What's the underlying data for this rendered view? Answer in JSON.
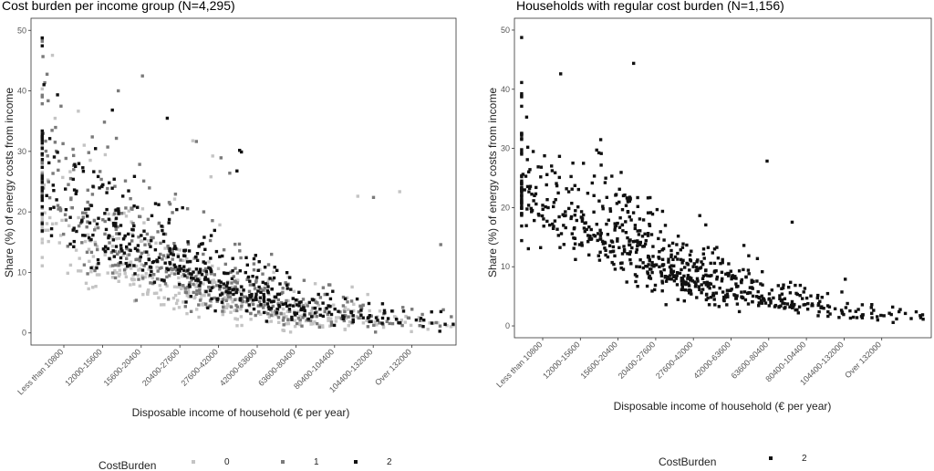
{
  "chart_data": [
    {
      "type": "scatter",
      "title": "Cost burden per income group (N=4,295)",
      "xlabel": "Disposable income of household (€ per year)",
      "ylabel": "Share (%) of energy costs from income",
      "x_categories": [
        "Less than 10800",
        "12000-15600",
        "15600-20400",
        "20400-27600",
        "27600-42000",
        "42000-63600",
        "63600-80400",
        "80400-104400",
        "104400-132000",
        "Over 132000"
      ],
      "y_ticks": [
        0,
        10,
        20,
        30,
        40,
        50
      ],
      "ylim": [
        -2,
        52
      ],
      "grid": false,
      "legend": {
        "title": "CostBurden",
        "position": "bottom",
        "entries": [
          "0",
          "1",
          "2"
        ]
      },
      "series": [
        {
          "name": "0",
          "color": "#c4c4c4",
          "count": 420,
          "profile": [
            [
              0,
              22,
              8
            ],
            [
              1.2,
              14,
              6
            ],
            [
              2.4,
              11,
              5
            ],
            [
              3.6,
              8,
              4
            ],
            [
              5,
              5,
              3
            ],
            [
              6.4,
              3.5,
              2.5
            ],
            [
              7.8,
              2.6,
              1.8
            ],
            [
              9.4,
              1.8,
              1.2
            ],
            [
              10.6,
              1.5,
              1
            ]
          ]
        },
        {
          "name": "1",
          "color": "#7a7a7a",
          "count": 440,
          "profile": [
            [
              0,
              27,
              9
            ],
            [
              1.2,
              18,
              7
            ],
            [
              2.4,
              14,
              6
            ],
            [
              3.6,
              11,
              5
            ],
            [
              5,
              7,
              4
            ],
            [
              6.4,
              4.5,
              3
            ],
            [
              7.8,
              3,
              2
            ],
            [
              9.4,
              2,
              1.4
            ],
            [
              10.6,
              1.6,
              1
            ]
          ]
        },
        {
          "name": "2",
          "color": "#111111",
          "count": 470,
          "profile": [
            [
              0,
              25,
              8
            ],
            [
              1.2,
              19,
              6
            ],
            [
              2.4,
              15,
              5
            ],
            [
              3.6,
              11,
              4
            ],
            [
              5,
              7.5,
              3
            ],
            [
              6.4,
              5,
              2.3
            ],
            [
              7.8,
              3.6,
              1.7
            ],
            [
              9.4,
              2.6,
              1.3
            ],
            [
              10.6,
              1.8,
              1
            ]
          ]
        }
      ]
    },
    {
      "type": "scatter",
      "title": "Households with regular cost burden (N=1,156)",
      "xlabel": "Disposable income of household (€ per year)",
      "ylabel": "Share (%) of energy costs from income",
      "x_categories": [
        "Less than 10800",
        "12000-15600",
        "15600-20400",
        "20400-27600",
        "27600-42000",
        "42000-63600",
        "63600-80400",
        "80400-104400",
        "104400-132000",
        "Over 132000"
      ],
      "y_ticks": [
        0,
        10,
        20,
        30,
        40,
        50
      ],
      "ylim": [
        -2,
        52
      ],
      "grid": false,
      "legend": {
        "title": "CostBurden",
        "position": "bottom",
        "entries": [
          "2"
        ]
      },
      "series": [
        {
          "name": "2",
          "color": "#111111",
          "count": 760,
          "profile": [
            [
              0,
              24,
              8
            ],
            [
              1.2,
              19,
              6
            ],
            [
              2.4,
              15,
              5
            ],
            [
              3.6,
              11,
              4
            ],
            [
              5,
              7.5,
              3
            ],
            [
              6.4,
              5,
              2.3
            ],
            [
              7.8,
              3.6,
              1.7
            ],
            [
              9.4,
              2.6,
              1.3
            ],
            [
              10.6,
              1.8,
              1
            ]
          ]
        }
      ]
    }
  ]
}
